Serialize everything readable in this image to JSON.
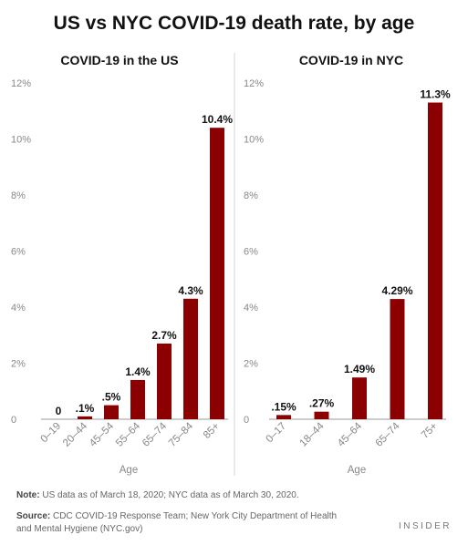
{
  "title": "US vs NYC COVID-19 death rate, by age",
  "chart_data": [
    {
      "type": "bar",
      "title": "COVID-19 in the US",
      "xlabel": "Age",
      "ylabel": "",
      "ylim": [
        0,
        12
      ],
      "yticks": [
        "0",
        "2%",
        "4%",
        "6%",
        "8%",
        "10%",
        "12%"
      ],
      "categories": [
        "0–19",
        "20–44",
        "45–54",
        "55–64",
        "65–74",
        "75–84",
        "85+"
      ],
      "values": [
        0,
        0.1,
        0.5,
        1.4,
        2.7,
        4.3,
        10.4
      ],
      "labels": [
        "0",
        ".1%",
        ".5%",
        "1.4%",
        "2.7%",
        "4.3%",
        "10.4%"
      ],
      "color": "#8b0000",
      "grid": false
    },
    {
      "type": "bar",
      "title": "COVID-19 in NYC",
      "xlabel": "Age",
      "ylabel": "",
      "ylim": [
        0,
        12
      ],
      "yticks": [
        "0",
        "2%",
        "4%",
        "6%",
        "8%",
        "10%",
        "12%"
      ],
      "categories": [
        "0–17",
        "18–44",
        "45–64",
        "65–74",
        "75+"
      ],
      "values": [
        0.15,
        0.27,
        1.49,
        4.29,
        11.3
      ],
      "labels": [
        ".15%",
        ".27%",
        "1.49%",
        "4.29%",
        "11.3%"
      ],
      "color": "#8b0000",
      "grid": false
    }
  ],
  "note": {
    "label": "Note:",
    "text": " US data as of March 18, 2020; NYC data as of March 30, 2020."
  },
  "source": {
    "label": "Source:",
    "text": " CDC COVID-19 Response Team; New York City Department of Health and Mental Hygiene (NYC.gov)"
  },
  "brand": "INSIDER"
}
